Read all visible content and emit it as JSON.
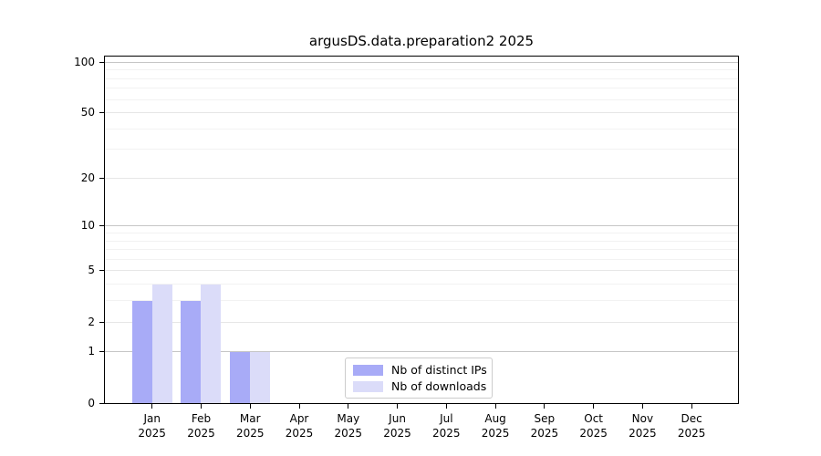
{
  "chart_data": {
    "type": "bar",
    "title": "argusDS.data.preparation2 2025",
    "categories": [
      "Jan",
      "Feb",
      "Mar",
      "Apr",
      "May",
      "Jun",
      "Jul",
      "Aug",
      "Sep",
      "Oct",
      "Nov",
      "Dec"
    ],
    "year_label": "2025",
    "series": [
      {
        "name": "Nb of distinct IPs",
        "color": "#a8abf7",
        "values": [
          3,
          3,
          1,
          0,
          0,
          0,
          0,
          0,
          0,
          0,
          0,
          0
        ]
      },
      {
        "name": "Nb of downloads",
        "color": "#dbdcf9",
        "values": [
          4,
          4,
          1,
          0,
          0,
          0,
          0,
          0,
          0,
          0,
          0,
          0
        ]
      }
    ],
    "yscale": "log1p",
    "ylim": [
      0,
      108
    ],
    "y_ticks": [
      0,
      1,
      2,
      5,
      10,
      20,
      50,
      100
    ],
    "y_minor_gridlines": [
      3,
      4,
      6,
      7,
      8,
      9,
      30,
      40,
      60,
      70,
      80,
      90
    ],
    "xlabel": "",
    "ylabel": "",
    "grid": "on",
    "legend_position": "lower center"
  },
  "colors": {
    "grid_power": "#c6c6c6",
    "grid_labeled": "#e6e6e6",
    "grid_minor": "#f2f2f2",
    "spine": "#000000",
    "background": "#ffffff",
    "text": "#000000",
    "legend_border": "#cccccc"
  }
}
